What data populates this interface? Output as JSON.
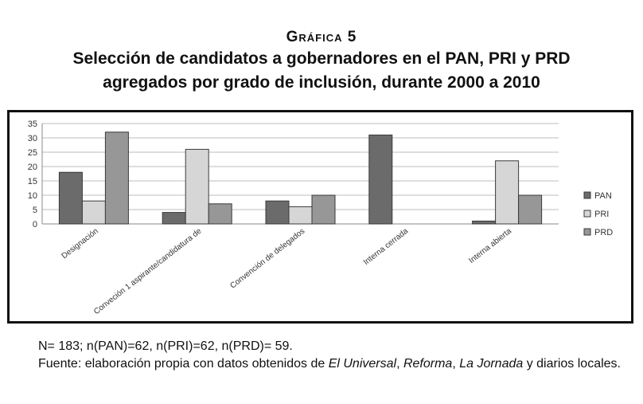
{
  "header": {
    "kicker": "Gráfica 5",
    "title_line1": "Selección de candidatos a gobernadores en el PAN, PRI y PRD",
    "title_line2": "agregados por grado de inclusión, durante 2000 a 2010"
  },
  "chart_data": {
    "type": "bar",
    "title": "",
    "xlabel": "",
    "ylabel": "",
    "categories": [
      "Designación",
      "Conveción 1 aspirante/candidatura de",
      "Convención de delegados",
      "Interna cerrada",
      "Interna abierta"
    ],
    "series": [
      {
        "name": "PAN",
        "values": [
          18,
          4,
          8,
          31,
          1
        ],
        "color": "#6b6b6b"
      },
      {
        "name": "PRI",
        "values": [
          8,
          26,
          6,
          0,
          22
        ],
        "color": "#d6d6d6"
      },
      {
        "name": "PRD",
        "values": [
          32,
          7,
          10,
          0,
          10
        ],
        "color": "#979797"
      }
    ],
    "ylim": [
      0,
      35
    ],
    "yticks": [
      0,
      5,
      10,
      15,
      20,
      25,
      30,
      35
    ],
    "grid": true,
    "legend_position": "right"
  },
  "notes": {
    "n_line": "N= 183; n(PAN)=62, n(PRI)=62, n(PRD)= 59.",
    "source_prefix": "Fuente: elaboración propia con datos obtenidos de ",
    "source_1": "El Universal",
    "sep_1": ", ",
    "source_2": "Reforma",
    "sep_2": ", ",
    "source_3": "La Jornada",
    "source_suffix": " y diarios locales."
  }
}
